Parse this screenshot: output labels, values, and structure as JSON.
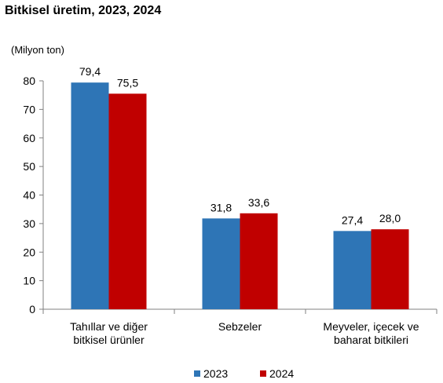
{
  "title": "Bitkisel üretim, 2023, 2024",
  "chart_data": {
    "type": "bar",
    "title": "Bitkisel üretim, 2023, 2024",
    "ylabel": "(Milyon ton)",
    "xlabel": "",
    "ylim": [
      0,
      80
    ],
    "yticks": [
      "0",
      "10",
      "20",
      "30",
      "40",
      "50",
      "60",
      "70",
      "80"
    ],
    "categories": [
      [
        "Tahıllar ve diğer",
        "bitkisel ürünler"
      ],
      [
        "Sebzeler"
      ],
      [
        "Meyveler, içecek ve",
        "baharat  bitkileri"
      ]
    ],
    "series": [
      {
        "name": "2023",
        "color": "#2e75b6",
        "values": [
          79.4,
          31.8,
          27.4
        ],
        "labels": [
          "79,4",
          "31,8",
          "27,4"
        ]
      },
      {
        "name": "2024",
        "color": "#c00000",
        "values": [
          75.5,
          33.6,
          28.0
        ],
        "labels": [
          "75,5",
          "33,6",
          "28,0"
        ]
      }
    ],
    "grid": false,
    "legend": "bottom-center"
  }
}
